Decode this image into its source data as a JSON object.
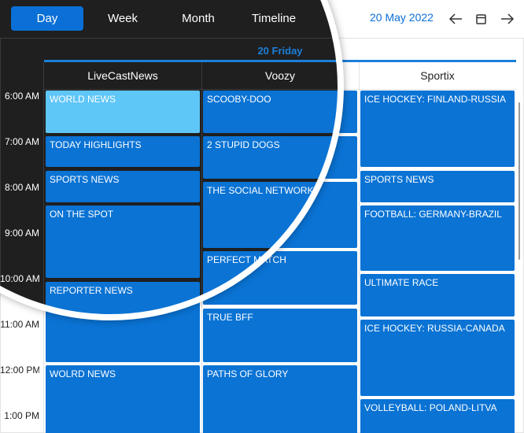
{
  "toolbar": {
    "views": [
      "Day",
      "Week",
      "Month",
      "Timeline"
    ],
    "date": "20 May 2022"
  },
  "day_header": "20 Friday",
  "times": [
    "6:00 AM",
    "7:00 AM",
    "8:00 AM",
    "9:00 AM",
    "10:00 AM",
    "11:00 AM",
    "12:00 PM",
    "1:00 PM"
  ],
  "resources": [
    {
      "name": "LiveCastNews",
      "events": [
        "WORLD NEWS",
        "TODAY HIGHLIGHTS",
        "SPORTS NEWS",
        "ON THE SPOT",
        "REPORTER NEWS",
        "WOLRD NEWS"
      ]
    },
    {
      "name": "Voozy",
      "events": [
        "SCOOBY-DOO",
        "2 STUPID DOGS",
        "THE SOCIAL NETWORK",
        "PERFECT MATCH",
        "TRUE BFF",
        "PATHS OF GLORY"
      ]
    },
    {
      "name": "Sportix",
      "events": [
        "ICE HOCKEY: FINLAND-RUSSIA",
        "SPORTS NEWS",
        "FOOTBALL: GERMANY-BRAZIL",
        "ULTIMATE RACE",
        "ICE HOCKEY: RUSSIA-CANADA",
        "VOLLEYBALL: POLAND-LITVA"
      ]
    }
  ]
}
